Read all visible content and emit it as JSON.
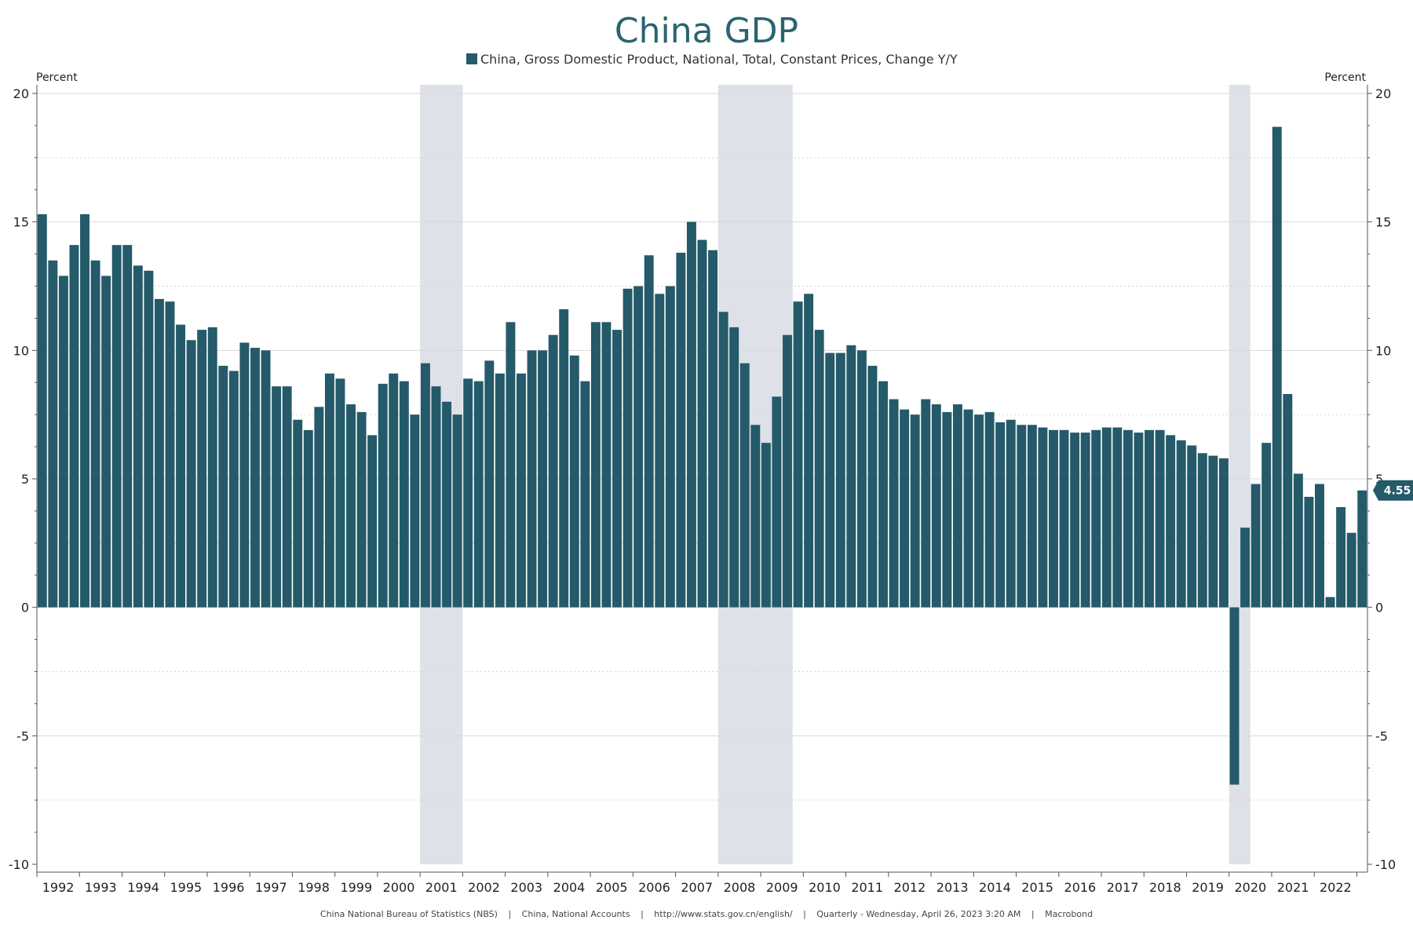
{
  "chart_data": {
    "type": "bar",
    "title": "China GDP",
    "series_name": "China, Gross Domestic Product, National, Total, Constant Prices, Change Y/Y",
    "left_unit": "Percent",
    "right_unit": "Percent",
    "ylim": [
      -10,
      20
    ],
    "yticks": [
      -10,
      -5,
      0,
      5,
      10,
      15,
      20
    ],
    "ytick_labels": [
      "-10",
      "-5",
      "0",
      "5",
      "10",
      "15",
      "20"
    ],
    "frequency": "Quarterly",
    "start": "1992Q1",
    "end": "2023Q1",
    "years": [
      "1992",
      "1993",
      "1994",
      "1995",
      "1996",
      "1997",
      "1998",
      "1999",
      "2000",
      "2001",
      "2002",
      "2003",
      "2004",
      "2005",
      "2006",
      "2007",
      "2008",
      "2009",
      "2010",
      "2011",
      "2012",
      "2013",
      "2014",
      "2015",
      "2016",
      "2017",
      "2018",
      "2019",
      "2020",
      "2021",
      "2022"
    ],
    "values": [
      15.3,
      13.5,
      12.9,
      14.1,
      15.3,
      13.5,
      12.9,
      14.1,
      14.1,
      13.3,
      13.1,
      12.0,
      11.9,
      11.0,
      10.4,
      10.8,
      10.9,
      9.4,
      9.2,
      10.3,
      10.1,
      10.0,
      8.6,
      8.6,
      7.3,
      6.9,
      7.8,
      9.1,
      8.9,
      7.9,
      7.6,
      6.7,
      8.7,
      9.1,
      8.8,
      7.5,
      9.5,
      8.6,
      8.0,
      7.5,
      8.9,
      8.8,
      9.6,
      9.1,
      11.1,
      9.1,
      10.0,
      10.0,
      10.6,
      11.6,
      9.8,
      8.8,
      11.1,
      11.1,
      10.8,
      12.4,
      12.5,
      13.7,
      12.2,
      12.5,
      13.8,
      15.0,
      14.3,
      13.9,
      11.5,
      10.9,
      9.5,
      7.1,
      6.4,
      8.2,
      10.6,
      11.9,
      12.2,
      10.8,
      9.9,
      9.9,
      10.2,
      10.0,
      9.4,
      8.8,
      8.1,
      7.7,
      7.5,
      8.1,
      7.9,
      7.6,
      7.9,
      7.7,
      7.5,
      7.6,
      7.2,
      7.3,
      7.1,
      7.1,
      7.0,
      6.9,
      6.9,
      6.8,
      6.8,
      6.9,
      7.0,
      7.0,
      6.9,
      6.8,
      6.9,
      6.9,
      6.7,
      6.5,
      6.3,
      6.0,
      5.9,
      5.8,
      -6.9,
      3.1,
      4.8,
      6.4,
      18.7,
      8.3,
      5.2,
      4.3,
      4.8,
      0.4,
      3.9,
      2.9,
      4.55
    ],
    "last_value_label": "4.55",
    "recession_periods": [
      {
        "start": "2001Q1",
        "end": "2001Q4"
      },
      {
        "start": "2008Q1",
        "end": "2009Q3"
      },
      {
        "start": "2020Q1",
        "end": "2020Q2"
      }
    ],
    "colors": {
      "bar": "#245a69",
      "shade": "#dee1e8",
      "title": "#2a6470"
    }
  },
  "footer": {
    "source": "China National Bureau of Statistics (NBS)",
    "dataset": "China, National Accounts",
    "url": "http://www.stats.gov.cn/english/",
    "frequency_time": "Quarterly - Wednesday, April 26, 2023 3:20 AM",
    "vendor": "Macrobond",
    "separator": "|"
  }
}
